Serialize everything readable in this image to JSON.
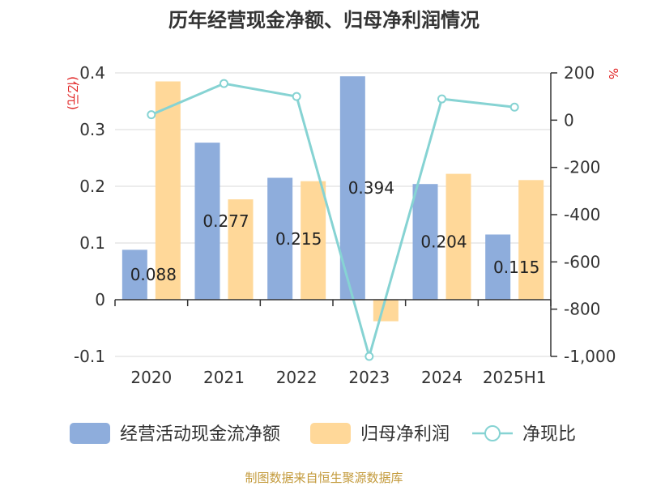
{
  "chart_data": {
    "type": "bar",
    "title": "历年经营现金净额、归母净利润情况",
    "categories": [
      "2020",
      "2021",
      "2022",
      "2023",
      "2024",
      "2025H1"
    ],
    "y_left": {
      "unit_label": "(亿元)",
      "range": [
        -0.1,
        0.4
      ],
      "ticks": [
        -0.1,
        0,
        0.1,
        0.2,
        0.3,
        0.4
      ],
      "tick_labels": [
        "-0.1",
        "0",
        "0.1",
        "0.2",
        "0.3",
        "0.4"
      ]
    },
    "y_right": {
      "unit_label": "%",
      "range": [
        -1000,
        200
      ],
      "ticks": [
        -1000,
        -800,
        -600,
        -400,
        -200,
        0,
        200
      ],
      "tick_labels": [
        "-1,000",
        "-800",
        "-600",
        "-400",
        "-200",
        "0",
        "200"
      ]
    },
    "series": [
      {
        "name": "经营活动现金流净额",
        "kind": "bar",
        "axis": "left",
        "color": "#8EADDC",
        "values": [
          0.088,
          0.277,
          0.215,
          0.394,
          0.204,
          0.115
        ],
        "data_labels": [
          "0.088",
          "0.277",
          "0.215",
          "0.394",
          "0.204",
          "0.115"
        ]
      },
      {
        "name": "归母净利润",
        "kind": "bar",
        "axis": "left",
        "color": "#FFD899",
        "values": [
          0.385,
          0.177,
          0.209,
          -0.038,
          0.222,
          0.211
        ]
      },
      {
        "name": "净现比",
        "kind": "line",
        "axis": "right",
        "color": "#86D3D3",
        "values": [
          23,
          155,
          100,
          -1000,
          90,
          55
        ]
      }
    ],
    "legend_position": "bottom",
    "grid": true,
    "colors": {
      "title": "#333333",
      "axis_text": "#333333",
      "unit_text": "#E02020",
      "grid": "#D8D8D8",
      "axis_line": "#333333",
      "source": "#C39A3B"
    }
  },
  "source_note": "制图数据来自恒生聚源数据库"
}
